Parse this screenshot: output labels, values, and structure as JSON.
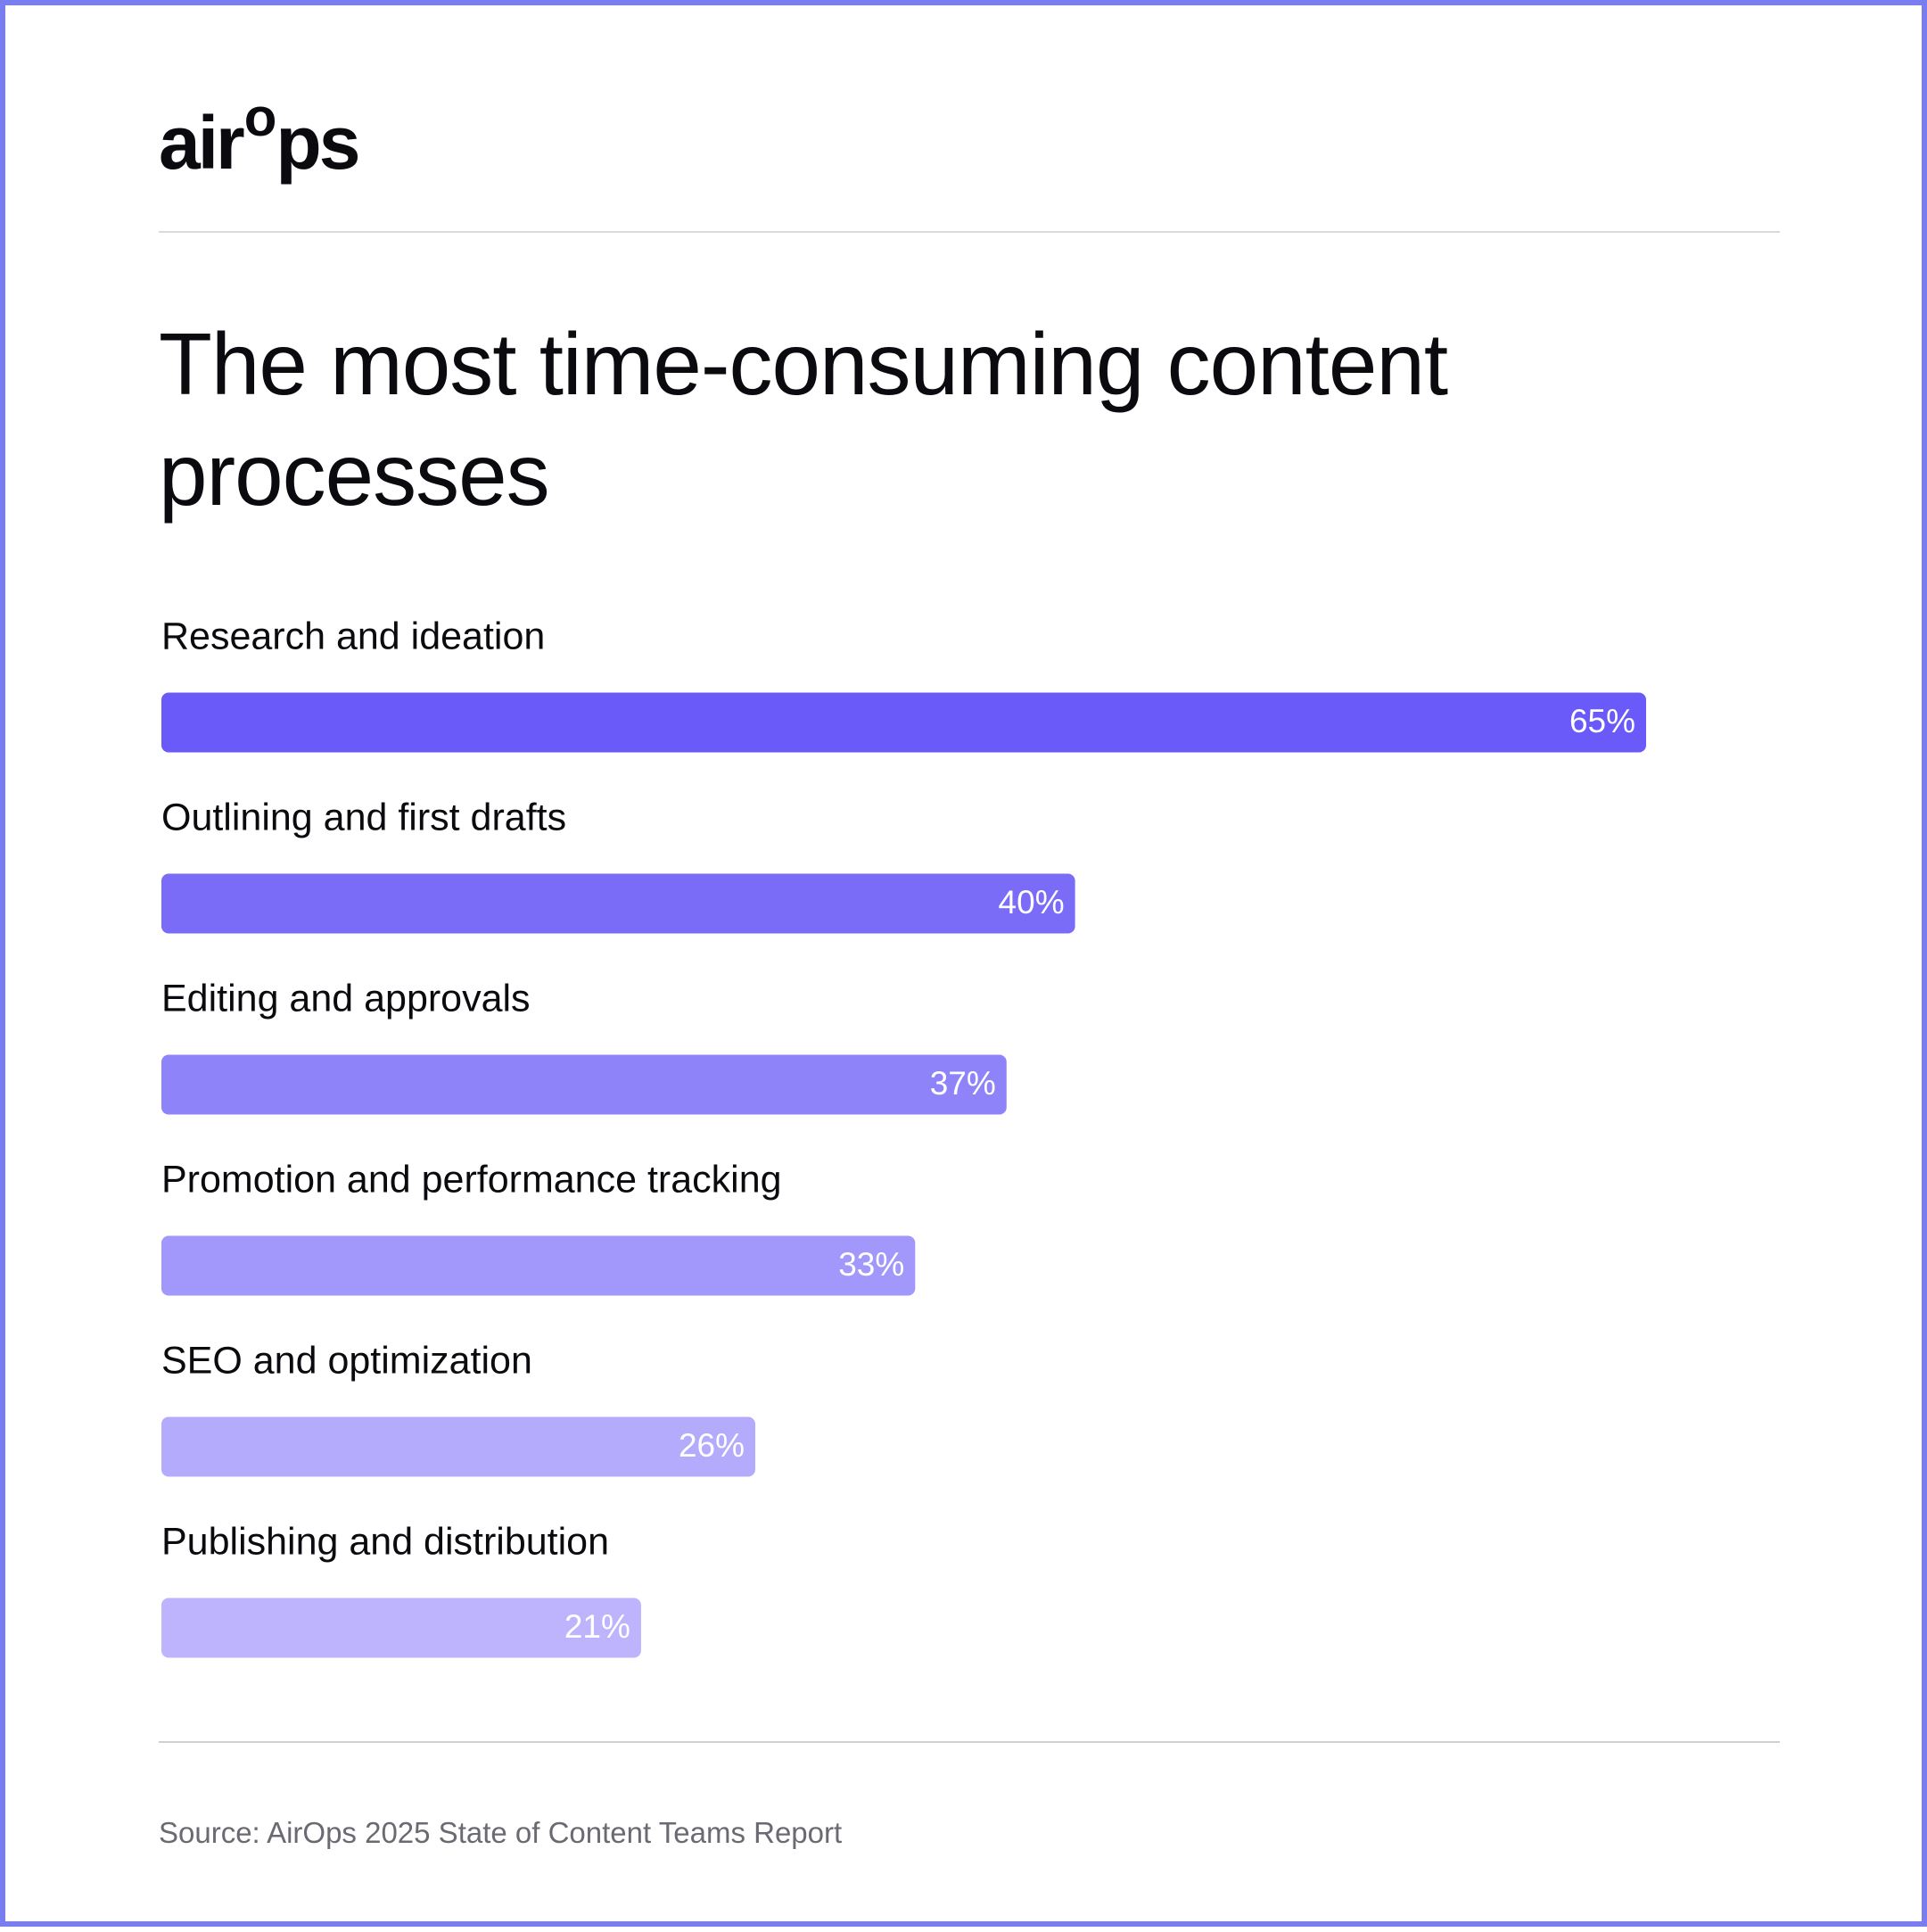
{
  "logo": {
    "part1": "air",
    "part2": "o",
    "part3": "ps",
    "text": "airops"
  },
  "title": "The most time-consuming content processes",
  "source": "Source: AirOps 2025 State of Content Teams Report",
  "colors": {
    "frame": "#7a7df0",
    "bars": [
      "#6a5af9",
      "#7b6cf8",
      "#8f83fa",
      "#a297fb",
      "#b4abfc",
      "#beb4fd"
    ],
    "label_text": "#ffffff",
    "category_text": "#0b0b0f",
    "source_text": "#6a6a72"
  },
  "chart_data": {
    "type": "bar",
    "orientation": "horizontal",
    "categories": [
      "Research and ideation",
      "Outlining and first drafts",
      "Editing and approvals",
      "Promotion and performance tracking",
      "SEO and optimization",
      "Publishing and distribution"
    ],
    "values": [
      65,
      40,
      37,
      33,
      26,
      21
    ],
    "value_labels": [
      "65%",
      "40%",
      "37%",
      "33%",
      "26%",
      "21%"
    ],
    "unit": "%",
    "title": "The most time-consuming content processes",
    "xlim": [
      0,
      65
    ],
    "grid": false,
    "legend": "none"
  }
}
